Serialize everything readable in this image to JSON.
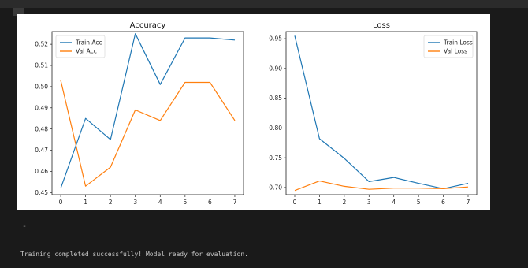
{
  "output": {
    "marker": "-",
    "status": "Training completed successfully! Model ready for evaluation."
  },
  "colors": {
    "train": "#1f77b4",
    "val": "#ff7f0e"
  },
  "chart_data": [
    {
      "type": "line",
      "title": "Accuracy",
      "x": [
        0,
        1,
        2,
        3,
        4,
        5,
        6,
        7
      ],
      "xticks": [
        "0",
        "1",
        "2",
        "3",
        "4",
        "5",
        "6",
        "7"
      ],
      "ylim": [
        0.449,
        0.526
      ],
      "yticks": [
        "0.45",
        "0.46",
        "0.47",
        "0.48",
        "0.49",
        "0.50",
        "0.51",
        "0.52"
      ],
      "legend_position": "top-left",
      "series": [
        {
          "name": "Train Acc",
          "color": "#1f77b4",
          "values": [
            0.452,
            0.485,
            0.475,
            0.525,
            0.501,
            0.523,
            0.523,
            0.522
          ]
        },
        {
          "name": "Val Acc",
          "color": "#ff7f0e",
          "values": [
            0.503,
            0.453,
            0.462,
            0.489,
            0.484,
            0.502,
            0.502,
            0.484
          ]
        }
      ]
    },
    {
      "type": "line",
      "title": "Loss",
      "x": [
        0,
        1,
        2,
        3,
        4,
        5,
        6,
        7
      ],
      "xticks": [
        "0",
        "1",
        "2",
        "3",
        "4",
        "5",
        "6",
        "7"
      ],
      "ylim": [
        0.688,
        0.962
      ],
      "yticks": [
        "0.70",
        "0.75",
        "0.80",
        "0.85",
        "0.90",
        "0.95"
      ],
      "legend_position": "top-right",
      "series": [
        {
          "name": "Train Loss",
          "color": "#1f77b4",
          "values": [
            0.955,
            0.782,
            0.749,
            0.71,
            0.717,
            0.707,
            0.698,
            0.707
          ]
        },
        {
          "name": "Val Loss",
          "color": "#ff7f0e",
          "values": [
            0.695,
            0.711,
            0.702,
            0.697,
            0.699,
            0.699,
            0.698,
            0.701
          ]
        }
      ]
    }
  ]
}
